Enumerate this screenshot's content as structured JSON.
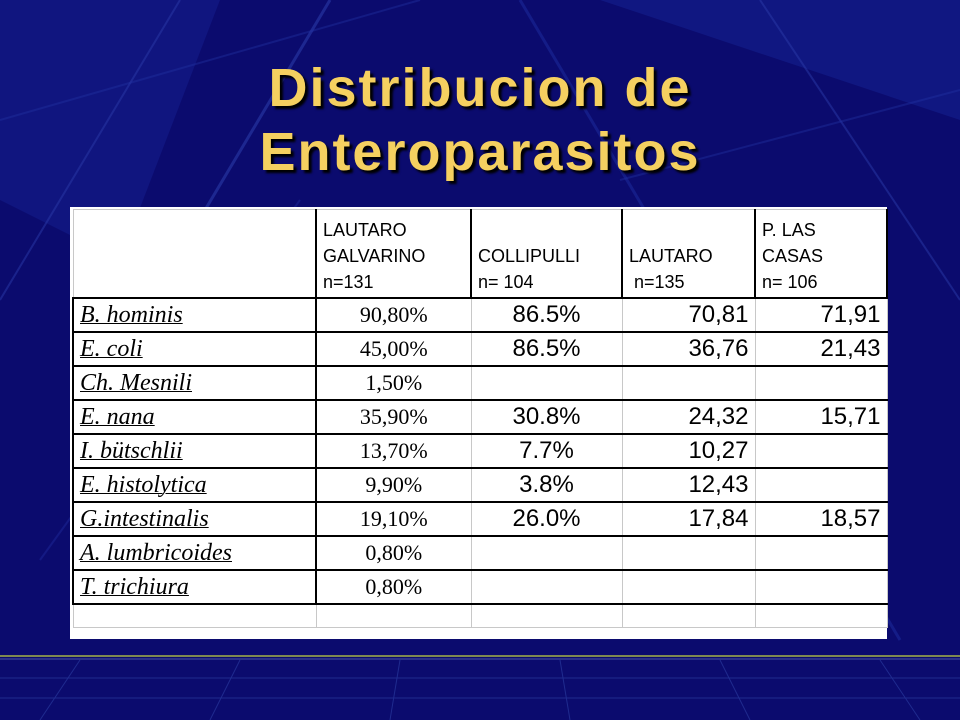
{
  "title": {
    "line1": "Distribucion de",
    "line2": "Enteroparasitos"
  },
  "colors": {
    "background": "#0b0b6e",
    "title": "#f5d060"
  },
  "table": {
    "headers": [
      "",
      "LAUTARO\nGALVARINO\nn=131",
      "COLLIPULLI\nn= 104",
      "LAUTARO\n n=135",
      "P. LAS\nCASAS\nn= 106"
    ],
    "rows": [
      {
        "species": "B. hominis",
        "c1": "90,80%",
        "c2": "86.5%",
        "c3": "70,81",
        "c4": "71,91"
      },
      {
        "species": "E. coli",
        "c1": "45,00%",
        "c2": "86.5%",
        "c3": "36,76",
        "c4": "21,43"
      },
      {
        "species": "Ch. Mesnili",
        "c1": "1,50%",
        "c2": "",
        "c3": "",
        "c4": ""
      },
      {
        "species": "E. nana",
        "c1": "35,90%",
        "c2": "30.8%",
        "c3": "24,32",
        "c4": "15,71"
      },
      {
        "species": "I. bütschlii",
        "c1": "13,70%",
        "c2": "7.7%",
        "c3": "10,27",
        "c4": ""
      },
      {
        "species": "E. histolytica",
        "c1": "9,90%",
        "c2": "3.8%",
        "c3": "12,43",
        "c4": ""
      },
      {
        "species": "G.intestinalis",
        "c1": "19,10%",
        "c2": "26.0%",
        "c3": "17,84",
        "c4": "18,57"
      },
      {
        "species": "A. lumbricoides",
        "c1": "0,80%",
        "c2": "",
        "c3": "",
        "c4": ""
      },
      {
        "species": "T. trichiura",
        "c1": "0,80%",
        "c2": "",
        "c3": "",
        "c4": ""
      }
    ]
  }
}
